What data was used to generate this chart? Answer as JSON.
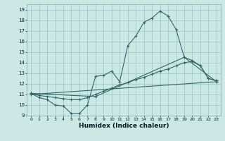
{
  "xlabel": "Humidex (Indice chaleur)",
  "background_color": "#cce8e4",
  "grid_color": "#99cccc",
  "line_color": "#336666",
  "xlim": [
    -0.5,
    23.5
  ],
  "ylim": [
    9,
    19.5
  ],
  "xticks": [
    0,
    1,
    2,
    3,
    4,
    5,
    6,
    7,
    8,
    9,
    10,
    11,
    12,
    13,
    14,
    15,
    16,
    17,
    18,
    19,
    20,
    21,
    22,
    23
  ],
  "yticks": [
    9,
    10,
    11,
    12,
    13,
    14,
    15,
    16,
    17,
    18,
    19
  ],
  "series1_x": [
    0,
    1,
    2,
    3,
    4,
    5,
    6,
    7,
    8,
    9,
    10,
    11,
    12,
    13,
    14,
    15,
    16,
    17,
    18,
    19,
    20,
    21,
    22,
    23
  ],
  "series1_y": [
    11.1,
    10.7,
    10.5,
    10.0,
    9.9,
    9.2,
    9.2,
    10.0,
    12.7,
    12.8,
    13.2,
    12.2,
    15.6,
    16.5,
    17.8,
    18.2,
    18.85,
    18.4,
    17.1,
    14.5,
    14.2,
    13.7,
    12.5,
    12.3
  ],
  "series2_x": [
    0,
    1,
    2,
    3,
    4,
    5,
    6,
    7,
    8,
    9,
    10,
    11,
    12,
    13,
    14,
    15,
    16,
    17,
    18,
    19,
    20,
    21,
    22,
    23
  ],
  "series2_y": [
    11.1,
    10.9,
    10.8,
    10.7,
    10.6,
    10.5,
    10.5,
    10.7,
    11.0,
    11.3,
    11.6,
    11.9,
    12.1,
    12.4,
    12.6,
    12.9,
    13.2,
    13.4,
    13.7,
    14.0,
    14.1,
    13.7,
    12.5,
    12.3
  ],
  "series3_x": [
    0,
    8,
    19,
    23
  ],
  "series3_y": [
    11.1,
    10.8,
    14.5,
    12.2
  ],
  "series4_x": [
    0,
    23
  ],
  "series4_y": [
    11.0,
    12.2
  ]
}
